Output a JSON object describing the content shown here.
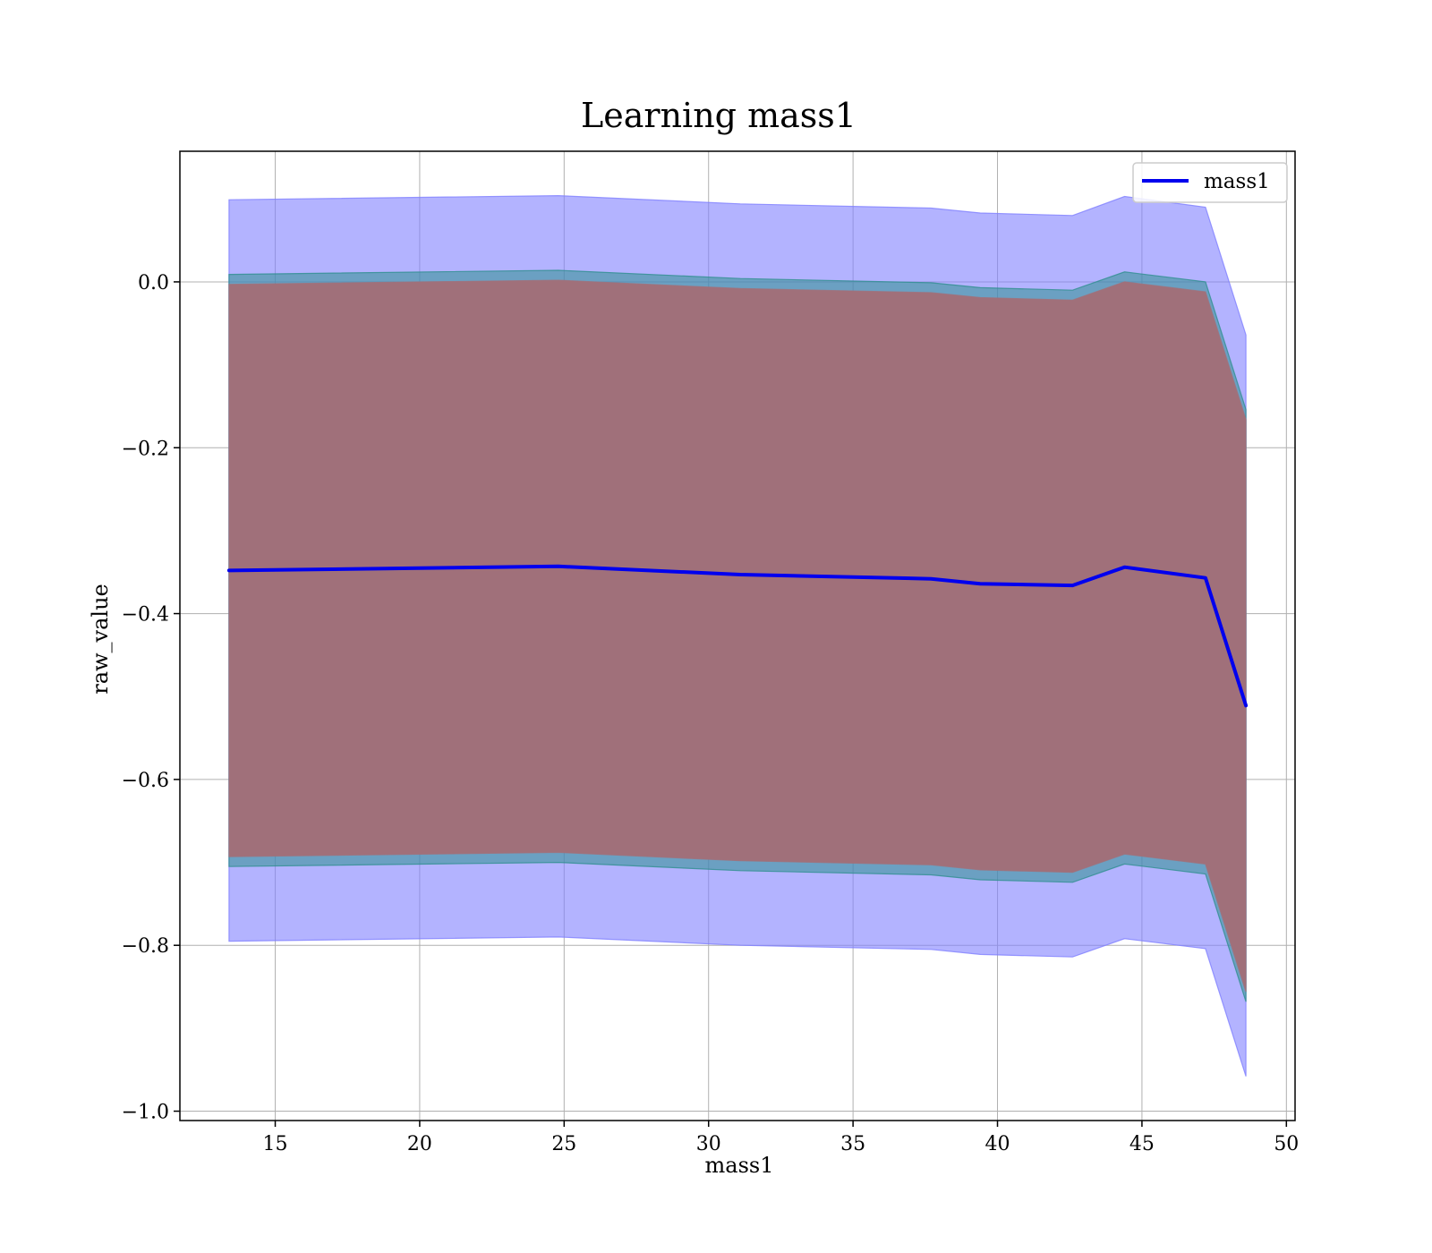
{
  "chart_data": {
    "type": "area",
    "title": "Learning mass1",
    "xlabel": "mass1",
    "ylabel": "raw_value",
    "xlim": [
      11.7,
      50.3
    ],
    "ylim": [
      -1.0113,
      0.1575
    ],
    "xticks": [
      15,
      20,
      25,
      30,
      35,
      40,
      45,
      50
    ],
    "yticks": [
      0.0,
      -0.2,
      -0.4,
      -0.6,
      -0.8,
      -1.0
    ],
    "xtick_labels": [
      "15",
      "20",
      "25",
      "30",
      "35",
      "40",
      "45",
      "50"
    ],
    "ytick_labels": [
      "0.0",
      "−0.2",
      "−0.4",
      "−0.6",
      "−0.8",
      "−1.0"
    ],
    "grid": true,
    "legend_position": "top-right",
    "x": [
      13.4,
      24.8,
      31.1,
      37.7,
      39.4,
      42.6,
      44.4,
      47.2,
      48.6
    ],
    "series": [
      {
        "name": "mass1",
        "color": "#0000ee",
        "values": [
          -0.348,
          -0.343,
          -0.353,
          -0.358,
          -0.364,
          -0.366,
          -0.344,
          -0.357,
          -0.511
        ]
      }
    ],
    "bands": [
      {
        "color": "#8080ff",
        "opacity": 0.6,
        "upper": [
          0.099,
          0.104,
          0.094,
          0.089,
          0.083,
          0.08,
          0.103,
          0.09,
          -0.064
        ],
        "lower": [
          -0.795,
          -0.79,
          -0.8,
          -0.805,
          -0.811,
          -0.814,
          -0.792,
          -0.804,
          -0.958
        ]
      },
      {
        "color": "#2f8f8f",
        "opacity": 0.55,
        "upper": [
          0.009,
          0.014,
          0.004,
          -0.001,
          -0.007,
          -0.01,
          0.012,
          0.0,
          -0.154
        ],
        "lower": [
          -0.705,
          -0.7,
          -0.71,
          -0.715,
          -0.721,
          -0.724,
          -0.702,
          -0.714,
          -0.868
        ]
      },
      {
        "color": "#a0707a",
        "opacity": 1.0,
        "upper": [
          -0.003,
          0.002,
          -0.008,
          -0.013,
          -0.019,
          -0.022,
          0.0,
          -0.012,
          -0.166
        ],
        "lower": [
          -0.693,
          -0.688,
          -0.698,
          -0.703,
          -0.709,
          -0.712,
          -0.69,
          -0.702,
          -0.856
        ]
      }
    ]
  }
}
